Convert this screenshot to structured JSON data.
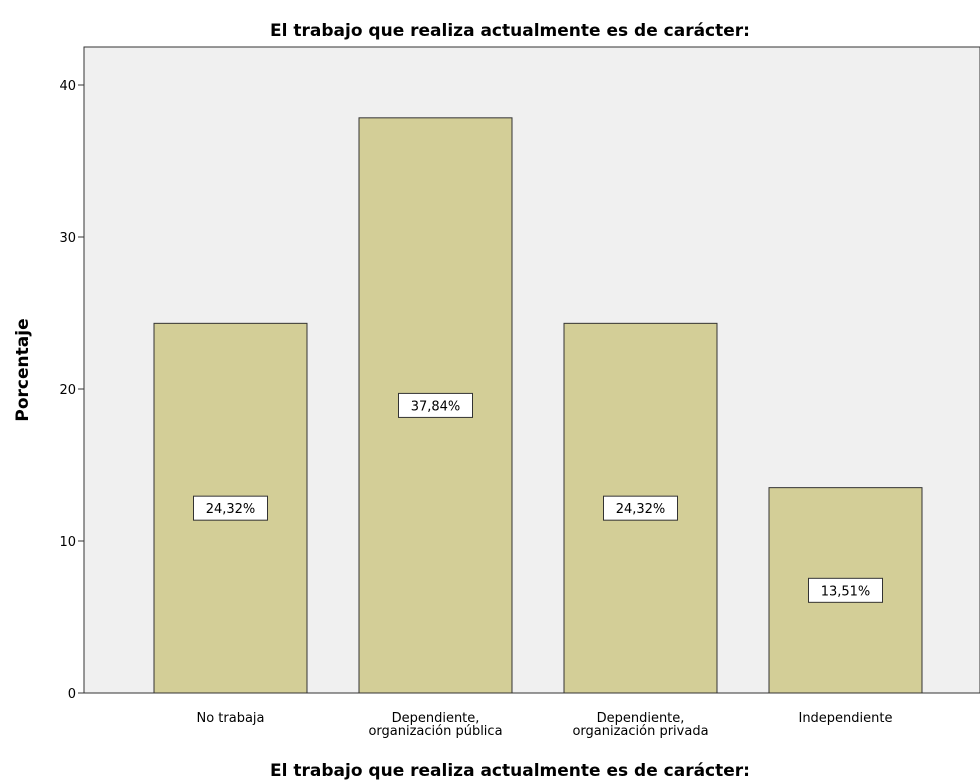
{
  "chart_data": {
    "type": "bar",
    "title": "El trabajo que realiza actualmente es de carácter:",
    "x_label": "El trabajo que realiza actualmente es de carácter:",
    "y_label": "Porcentaje",
    "categories": [
      "No trabaja",
      "Dependiente,\norganización pública",
      "Dependiente,\norganización privada",
      "Independiente"
    ],
    "values": [
      24.32,
      37.84,
      24.32,
      13.51
    ],
    "value_labels": [
      "24,32%",
      "37,84%",
      "24,32%",
      "13,51%"
    ],
    "color": "#d3ce97",
    "ylim": [
      0,
      42.5
    ],
    "yticks": [
      0,
      10,
      20,
      30,
      40
    ],
    "grid": false
  }
}
